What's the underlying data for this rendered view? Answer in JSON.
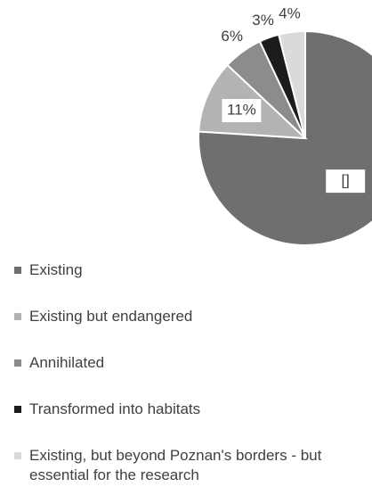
{
  "chart_data": {
    "type": "pie",
    "categories": [
      "Existing",
      "Existing but endangered",
      "Annihilated",
      "Transformed into habitats",
      "Existing, but beyond Poznan's borders - but essential for the research"
    ],
    "values": [
      76,
      11,
      6,
      3,
      4
    ],
    "value_labels": [
      "[]",
      "11%",
      "6%",
      "3%",
      "4%"
    ],
    "colors": [
      "#6f6f6f",
      "#b3b3b3",
      "#8c8c8c",
      "#1c1c1c",
      "#dadada"
    ]
  }
}
